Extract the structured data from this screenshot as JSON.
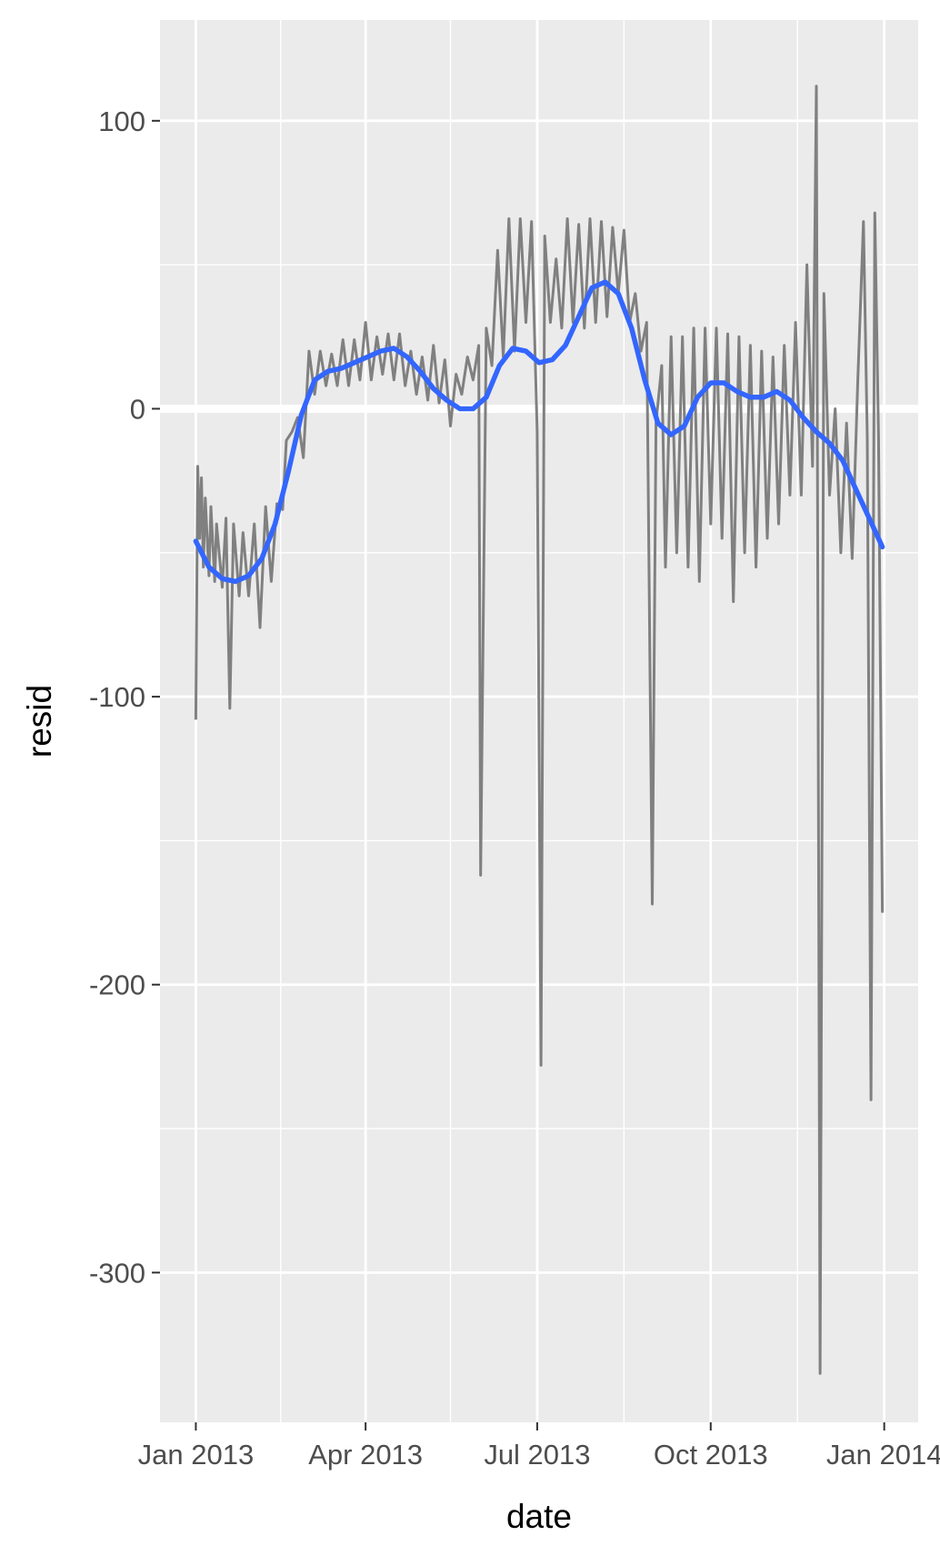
{
  "chart_data": {
    "type": "line",
    "title": "",
    "xlabel": "date",
    "ylabel": "resid",
    "xlim": [
      "2012-12-13",
      "2014-01-19"
    ],
    "ylim": [
      -352,
      135
    ],
    "x_ticks": [
      {
        "date": "2013-01-01",
        "label": "Jan 2013"
      },
      {
        "date": "2013-04-01",
        "label": "Apr 2013"
      },
      {
        "date": "2013-07-01",
        "label": "Jul 2013"
      },
      {
        "date": "2013-10-01",
        "label": "Oct 2013"
      },
      {
        "date": "2014-01-01",
        "label": "Jan 2014"
      }
    ],
    "x_minor_ticks": [
      "2013-02-15",
      "2013-05-16",
      "2013-08-16",
      "2013-11-16"
    ],
    "y_ticks": [
      100,
      0,
      -100,
      -200,
      -300
    ],
    "y_minor_ticks": [
      50,
      -50,
      -150,
      -250
    ],
    "grid": true,
    "legend": "none",
    "colors": {
      "panel": "#ebebeb",
      "grid": "#ffffff",
      "residual_line": "#808080",
      "smooth_line": "#3366ff",
      "tick_mark": "#333333"
    },
    "series": [
      {
        "kind": "residual",
        "points": [
          [
            "2013-01-01",
            -108
          ],
          [
            "2013-01-02",
            -20
          ],
          [
            "2013-01-03",
            -45
          ],
          [
            "2013-01-04",
            -24
          ],
          [
            "2013-01-05",
            -55
          ],
          [
            "2013-01-06",
            -31
          ],
          [
            "2013-01-08",
            -58
          ],
          [
            "2013-01-09",
            -34
          ],
          [
            "2013-01-11",
            -60
          ],
          [
            "2013-01-12",
            -40
          ],
          [
            "2013-01-15",
            -62
          ],
          [
            "2013-01-17",
            -38
          ],
          [
            "2013-01-19",
            -104
          ],
          [
            "2013-01-21",
            -40
          ],
          [
            "2013-01-24",
            -65
          ],
          [
            "2013-01-26",
            -43
          ],
          [
            "2013-01-29",
            -65
          ],
          [
            "2013-02-01",
            -40
          ],
          [
            "2013-02-04",
            -76
          ],
          [
            "2013-02-07",
            -34
          ],
          [
            "2013-02-10",
            -60
          ],
          [
            "2013-02-13",
            -33
          ],
          [
            "2013-02-16",
            -35
          ],
          [
            "2013-02-18",
            -11
          ],
          [
            "2013-02-21",
            -8
          ],
          [
            "2013-02-24",
            -3
          ],
          [
            "2013-02-27",
            -17
          ],
          [
            "2013-03-02",
            20
          ],
          [
            "2013-03-05",
            5
          ],
          [
            "2013-03-08",
            20
          ],
          [
            "2013-03-11",
            8
          ],
          [
            "2013-03-14",
            19
          ],
          [
            "2013-03-17",
            8
          ],
          [
            "2013-03-20",
            24
          ],
          [
            "2013-03-23",
            8
          ],
          [
            "2013-03-26",
            24
          ],
          [
            "2013-03-29",
            10
          ],
          [
            "2013-04-01",
            30
          ],
          [
            "2013-04-04",
            10
          ],
          [
            "2013-04-07",
            25
          ],
          [
            "2013-04-10",
            12
          ],
          [
            "2013-04-13",
            26
          ],
          [
            "2013-04-16",
            10
          ],
          [
            "2013-04-19",
            26
          ],
          [
            "2013-04-22",
            8
          ],
          [
            "2013-04-25",
            20
          ],
          [
            "2013-04-28",
            5
          ],
          [
            "2013-05-01",
            18
          ],
          [
            "2013-05-04",
            3
          ],
          [
            "2013-05-07",
            22
          ],
          [
            "2013-05-10",
            2
          ],
          [
            "2013-05-13",
            17
          ],
          [
            "2013-05-16",
            -6
          ],
          [
            "2013-05-19",
            12
          ],
          [
            "2013-05-22",
            5
          ],
          [
            "2013-05-25",
            18
          ],
          [
            "2013-05-28",
            10
          ],
          [
            "2013-05-31",
            22
          ],
          [
            "2013-06-01",
            -162
          ],
          [
            "2013-06-04",
            28
          ],
          [
            "2013-06-07",
            15
          ],
          [
            "2013-06-10",
            55
          ],
          [
            "2013-06-13",
            18
          ],
          [
            "2013-06-16",
            66
          ],
          [
            "2013-06-19",
            20
          ],
          [
            "2013-06-22",
            66
          ],
          [
            "2013-06-25",
            30
          ],
          [
            "2013-06-28",
            65
          ],
          [
            "2013-07-01",
            -8
          ],
          [
            "2013-07-03",
            -228
          ],
          [
            "2013-07-05",
            60
          ],
          [
            "2013-07-08",
            30
          ],
          [
            "2013-07-11",
            52
          ],
          [
            "2013-07-14",
            28
          ],
          [
            "2013-07-17",
            66
          ],
          [
            "2013-07-20",
            30
          ],
          [
            "2013-07-23",
            64
          ],
          [
            "2013-07-26",
            28
          ],
          [
            "2013-07-29",
            66
          ],
          [
            "2013-08-01",
            30
          ],
          [
            "2013-08-04",
            65
          ],
          [
            "2013-08-07",
            32
          ],
          [
            "2013-08-10",
            63
          ],
          [
            "2013-08-13",
            40
          ],
          [
            "2013-08-16",
            62
          ],
          [
            "2013-08-19",
            30
          ],
          [
            "2013-08-22",
            40
          ],
          [
            "2013-08-25",
            20
          ],
          [
            "2013-08-28",
            30
          ],
          [
            "2013-08-31",
            -172
          ],
          [
            "2013-09-02",
            -5
          ],
          [
            "2013-09-05",
            15
          ],
          [
            "2013-09-07",
            -55
          ],
          [
            "2013-09-10",
            25
          ],
          [
            "2013-09-13",
            -50
          ],
          [
            "2013-09-16",
            25
          ],
          [
            "2013-09-19",
            -55
          ],
          [
            "2013-09-22",
            28
          ],
          [
            "2013-09-25",
            -60
          ],
          [
            "2013-09-28",
            28
          ],
          [
            "2013-10-01",
            -40
          ],
          [
            "2013-10-04",
            28
          ],
          [
            "2013-10-07",
            -45
          ],
          [
            "2013-10-10",
            26
          ],
          [
            "2013-10-13",
            -67
          ],
          [
            "2013-10-16",
            25
          ],
          [
            "2013-10-19",
            -50
          ],
          [
            "2013-10-22",
            22
          ],
          [
            "2013-10-25",
            -55
          ],
          [
            "2013-10-28",
            20
          ],
          [
            "2013-10-31",
            -45
          ],
          [
            "2013-11-03",
            18
          ],
          [
            "2013-11-06",
            -40
          ],
          [
            "2013-11-09",
            22
          ],
          [
            "2013-11-12",
            -30
          ],
          [
            "2013-11-15",
            30
          ],
          [
            "2013-11-18",
            -30
          ],
          [
            "2013-11-21",
            50
          ],
          [
            "2013-11-24",
            -20
          ],
          [
            "2013-11-26",
            112
          ],
          [
            "2013-11-28",
            -335
          ],
          [
            "2013-11-30",
            40
          ],
          [
            "2013-12-03",
            -30
          ],
          [
            "2013-12-06",
            0
          ],
          [
            "2013-12-09",
            -50
          ],
          [
            "2013-12-12",
            -5
          ],
          [
            "2013-12-15",
            -52
          ],
          [
            "2013-12-18",
            10
          ],
          [
            "2013-12-21",
            65
          ],
          [
            "2013-12-23",
            -10
          ],
          [
            "2013-12-25",
            -240
          ],
          [
            "2013-12-27",
            68
          ],
          [
            "2013-12-29",
            -10
          ],
          [
            "2013-12-31",
            -175
          ]
        ]
      },
      {
        "kind": "smooth",
        "points": [
          [
            "2013-01-01",
            -46
          ],
          [
            "2013-01-08",
            -55
          ],
          [
            "2013-01-15",
            -59
          ],
          [
            "2013-01-22",
            -60
          ],
          [
            "2013-01-29",
            -58
          ],
          [
            "2013-02-05",
            -52
          ],
          [
            "2013-02-12",
            -40
          ],
          [
            "2013-02-19",
            -22
          ],
          [
            "2013-02-26",
            -2
          ],
          [
            "2013-03-05",
            10
          ],
          [
            "2013-03-12",
            13
          ],
          [
            "2013-03-19",
            14
          ],
          [
            "2013-03-26",
            16
          ],
          [
            "2013-04-02",
            18
          ],
          [
            "2013-04-09",
            20
          ],
          [
            "2013-04-16",
            21
          ],
          [
            "2013-04-23",
            18
          ],
          [
            "2013-04-30",
            13
          ],
          [
            "2013-05-07",
            7
          ],
          [
            "2013-05-14",
            3
          ],
          [
            "2013-05-21",
            0
          ],
          [
            "2013-05-28",
            0
          ],
          [
            "2013-06-04",
            4
          ],
          [
            "2013-06-11",
            15
          ],
          [
            "2013-06-18",
            21
          ],
          [
            "2013-06-25",
            20
          ],
          [
            "2013-07-02",
            16
          ],
          [
            "2013-07-09",
            17
          ],
          [
            "2013-07-16",
            22
          ],
          [
            "2013-07-23",
            32
          ],
          [
            "2013-07-30",
            42
          ],
          [
            "2013-08-06",
            44
          ],
          [
            "2013-08-13",
            40
          ],
          [
            "2013-08-20",
            28
          ],
          [
            "2013-08-27",
            10
          ],
          [
            "2013-09-03",
            -5
          ],
          [
            "2013-09-10",
            -9
          ],
          [
            "2013-09-17",
            -6
          ],
          [
            "2013-09-24",
            4
          ],
          [
            "2013-10-01",
            9
          ],
          [
            "2013-10-08",
            9
          ],
          [
            "2013-10-15",
            6
          ],
          [
            "2013-10-22",
            4
          ],
          [
            "2013-10-29",
            4
          ],
          [
            "2013-11-05",
            6
          ],
          [
            "2013-11-12",
            3
          ],
          [
            "2013-11-19",
            -3
          ],
          [
            "2013-11-26",
            -8
          ],
          [
            "2013-12-03",
            -12
          ],
          [
            "2013-12-10",
            -18
          ],
          [
            "2013-12-17",
            -28
          ],
          [
            "2013-12-24",
            -38
          ],
          [
            "2013-12-31",
            -48
          ]
        ]
      }
    ]
  }
}
